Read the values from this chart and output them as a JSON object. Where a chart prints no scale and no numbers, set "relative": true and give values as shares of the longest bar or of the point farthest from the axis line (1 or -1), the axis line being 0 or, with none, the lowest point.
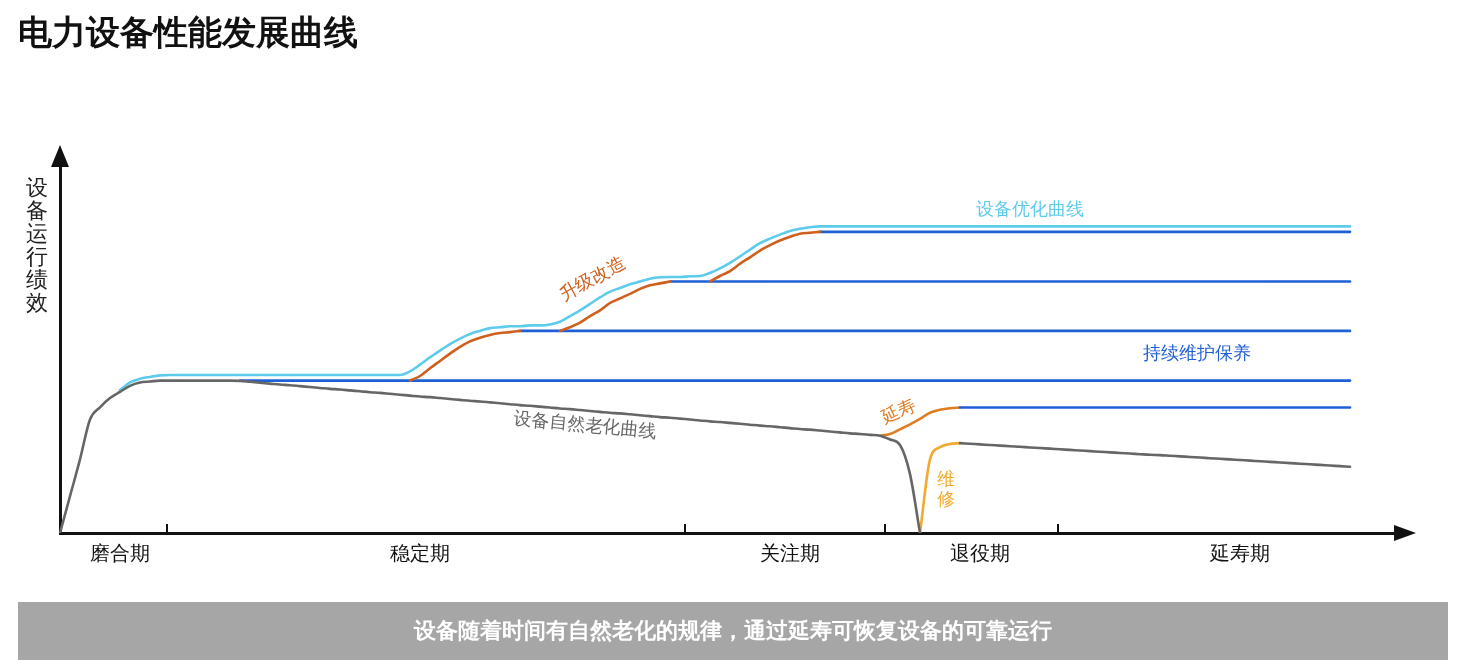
{
  "chart_data": {
    "type": "line",
    "relative": true,
    "title": "电力设备性能发展曲线",
    "ylabel": "设备运行绩效",
    "annotations": [
      "设备随着时间有自然老化的规律，通过延寿可恢复设备的可靠运行"
    ],
    "categories": [
      null,
      null,
      null,
      null,
      null,
      null,
      "磨合期",
      null,
      null,
      null,
      null,
      null,
      null,
      null,
      null,
      null,
      null,
      null,
      null,
      null,
      null,
      null,
      null,
      null,
      null,
      null,
      null,
      null,
      null,
      null,
      null,
      null,
      null,
      null,
      null,
      null,
      "稳定期",
      null,
      null,
      null,
      null,
      null,
      null,
      null,
      null,
      null,
      null,
      null,
      null,
      null,
      null,
      null,
      null,
      null,
      null,
      null,
      null,
      null,
      null,
      null,
      null,
      null,
      null,
      null,
      null,
      null,
      null,
      null,
      null,
      null,
      null,
      null,
      null,
      "关注期",
      null,
      null,
      null,
      null,
      null,
      null,
      null,
      null,
      null,
      null,
      null,
      null,
      null,
      null,
      null,
      null,
      null,
      null,
      "退役期",
      null,
      null,
      null,
      null,
      null,
      null,
      null,
      null,
      null,
      null,
      null,
      null,
      null,
      null,
      null,
      null,
      null,
      null,
      null,
      null,
      null,
      null,
      null,
      null,
      null,
      "延寿期",
      null,
      null,
      null,
      null,
      null,
      null,
      null,
      null,
      null,
      null,
      null,
      null,
      null,
      null,
      null,
      null
    ],
    "series": [
      {
        "name": "设备自然老化曲线",
        "color": "#666666",
        "values": [
          0,
          0.12,
          0.24,
          0.37,
          0.41,
          0.44,
          0.46,
          0.48,
          0.491,
          0.494,
          0.497,
          0.497,
          0.497,
          0.497,
          0.497,
          0.497,
          0.497,
          0.497,
          0.496,
          0.493,
          0.49,
          0.487,
          0.484,
          0.482,
          0.479,
          0.476,
          0.473,
          0.47,
          0.468,
          0.465,
          0.462,
          0.459,
          0.457,
          0.454,
          0.451,
          0.448,
          0.445,
          0.443,
          0.44,
          0.437,
          0.434,
          0.431,
          0.429,
          0.426,
          0.423,
          0.42,
          0.417,
          0.415,
          0.412,
          0.409,
          0.406,
          0.404,
          0.401,
          0.398,
          0.395,
          0.392,
          0.39,
          0.387,
          0.384,
          0.381,
          0.378,
          0.376,
          0.373,
          0.37,
          0.367,
          0.364,
          0.362,
          0.359,
          0.356,
          0.353,
          0.35,
          0.348,
          0.345,
          0.342,
          0.339,
          0.337,
          0.334,
          0.331,
          0.328,
          0.325,
          0.323,
          0.32,
          0.317,
          0.305,
          0.287,
          0.192,
          0,
          null,
          null,
          null,
          0.293,
          0.291,
          0.289,
          0.287,
          0.285,
          0.283,
          0.281,
          0.279,
          0.277,
          0.275,
          0.273,
          0.271,
          0.269,
          0.267,
          0.265,
          0.263,
          0.261,
          0.259,
          0.257,
          0.255,
          0.254,
          0.252,
          0.25,
          0.248,
          0.246,
          0.244,
          0.242,
          0.24,
          0.238,
          0.236,
          0.234,
          0.232,
          0.23,
          0.228,
          0.226,
          0.224,
          0.222,
          0.22,
          0.218,
          0.216,
          null,
          null,
          null,
          null,
          null
        ]
      },
      {
        "name": "设备优化曲线",
        "color": "#5ccbec",
        "values": [
          null,
          null,
          null,
          null,
          null,
          null,
          0.466,
          0.491,
          0.503,
          0.509,
          0.514,
          0.515,
          0.515,
          0.515,
          0.515,
          0.515,
          0.515,
          0.515,
          0.515,
          0.515,
          0.515,
          0.515,
          0.515,
          0.515,
          0.515,
          0.515,
          0.515,
          0.515,
          0.515,
          0.515,
          0.515,
          0.515,
          0.515,
          0.515,
          0.515,
          0.527,
          0.549,
          0.573,
          0.595,
          0.616,
          0.634,
          0.649,
          0.659,
          0.668,
          0.671,
          0.674,
          0.674,
          0.677,
          0.677,
          0.68,
          0.689,
          0.707,
          0.726,
          0.747,
          0.768,
          0.787,
          0.799,
          0.811,
          0.82,
          0.829,
          0.834,
          0.835,
          0.835,
          0.837,
          0.838,
          0.848,
          0.863,
          0.881,
          0.902,
          0.924,
          0.945,
          0.96,
          0.973,
          0.985,
          0.992,
          0.997,
          1,
          1,
          1,
          1,
          1,
          1,
          1,
          1,
          1,
          1,
          1,
          1,
          1,
          1,
          1,
          1,
          1,
          1,
          1,
          1,
          1,
          1,
          1,
          1,
          1,
          1,
          1,
          1,
          1,
          1,
          1,
          1,
          1,
          1,
          1,
          1,
          1,
          1,
          1,
          1,
          1,
          1,
          1,
          1,
          1,
          1,
          1,
          1,
          1,
          1,
          1,
          1,
          1,
          1,
          null,
          null,
          null,
          null,
          null
        ]
      },
      {
        "name": "升级改造",
        "color": "#cf5f1c",
        "values": [
          null,
          null,
          null,
          null,
          null,
          null,
          null,
          null,
          null,
          null,
          null,
          null,
          null,
          null,
          null,
          null,
          null,
          null,
          null,
          null,
          null,
          null,
          null,
          null,
          null,
          null,
          null,
          null,
          null,
          null,
          null,
          null,
          null,
          null,
          null,
          0.497,
          0.512,
          0.537,
          0.561,
          0.585,
          0.607,
          0.625,
          0.637,
          0.646,
          0.652,
          0.655,
          0.659,
          null,
          null,
          null,
          0.659,
          0.671,
          0.686,
          0.707,
          0.726,
          0.75,
          0.765,
          0.78,
          0.796,
          0.808,
          0.814,
          0.82,
          null,
          null,
          null,
          0.82,
          0.838,
          0.854,
          0.878,
          0.899,
          0.921,
          0.939,
          0.954,
          0.966,
          0.976,
          0.979,
          0.982,
          null,
          null,
          null,
          null,
          null,
          null,
          null,
          null,
          null,
          null,
          null,
          null,
          null,
          null,
          null,
          null,
          null,
          null,
          null,
          null,
          null,
          null,
          null,
          null,
          null,
          null,
          null,
          null,
          null,
          null,
          null,
          null,
          null,
          null,
          null,
          null,
          null,
          null,
          null,
          null,
          null,
          null,
          null,
          null,
          null,
          null,
          null,
          null,
          null,
          null,
          null,
          null,
          null,
          null,
          null,
          null,
          null,
          null
        ]
      },
      {
        "name": "持续维护保养",
        "color": "#1f5fd6",
        "values": [
          null,
          null,
          null,
          null,
          null,
          null,
          null,
          null,
          null,
          null,
          null,
          null,
          null,
          null,
          null,
          null,
          null,
          null,
          0.497,
          0.497,
          0.497,
          0.497,
          0.497,
          0.497,
          0.497,
          0.497,
          0.497,
          0.497,
          0.497,
          0.497,
          0.497,
          0.497,
          0.497,
          0.497,
          0.497,
          0.497,
          0.497,
          0.497,
          0.497,
          0.497,
          0.497,
          0.497,
          0.497,
          0.497,
          0.497,
          0.497,
          0.497,
          0.497,
          0.497,
          0.497,
          0.497,
          0.497,
          0.497,
          0.497,
          0.497,
          0.497,
          0.497,
          0.497,
          0.497,
          0.497,
          0.497,
          0.497,
          0.497,
          0.497,
          0.497,
          0.497,
          0.497,
          0.497,
          0.497,
          0.497,
          0.497,
          0.497,
          0.497,
          0.497,
          0.497,
          0.497,
          0.497,
          0.497,
          0.497,
          0.497,
          0.497,
          0.497,
          0.497,
          0.497,
          0.497,
          0.497,
          0.497,
          0.497,
          0.497,
          0.497,
          0.497,
          0.497,
          0.497,
          0.497,
          0.497,
          0.497,
          0.497,
          0.497,
          0.497,
          0.497,
          0.497,
          0.497,
          0.497,
          0.497,
          0.497,
          0.497,
          0.497,
          0.497,
          0.497,
          0.497,
          0.497,
          0.497,
          0.497,
          0.497,
          0.497,
          0.497,
          0.497,
          0.497,
          0.497,
          0.497,
          0.497,
          0.497,
          0.497,
          0.497,
          0.497,
          0.497,
          0.497,
          0.497,
          0.497,
          0.497,
          null,
          null,
          null,
          null,
          null
        ]
      },
      {
        "color": "#1f5fd6",
        "values": [
          null,
          null,
          null,
          null,
          null,
          null,
          null,
          null,
          null,
          null,
          null,
          null,
          null,
          null,
          null,
          null,
          null,
          null,
          null,
          null,
          null,
          null,
          null,
          null,
          null,
          null,
          null,
          null,
          null,
          null,
          null,
          null,
          null,
          null,
          null,
          null,
          null,
          null,
          null,
          null,
          null,
          null,
          null,
          null,
          null,
          null,
          0.659,
          0.659,
          0.659,
          0.659,
          0.659,
          0.659,
          0.659,
          0.659,
          0.659,
          0.659,
          0.659,
          0.659,
          0.659,
          0.659,
          0.659,
          0.659,
          0.659,
          0.659,
          0.659,
          0.659,
          0.659,
          0.659,
          0.659,
          0.659,
          0.659,
          0.659,
          0.659,
          0.659,
          0.659,
          0.659,
          0.659,
          0.659,
          0.659,
          0.659,
          0.659,
          0.659,
          0.659,
          0.659,
          0.659,
          0.659,
          0.659,
          0.659,
          0.659,
          0.659,
          0.659,
          0.659,
          0.659,
          0.659,
          0.659,
          0.659,
          0.659,
          0.659,
          0.659,
          0.659,
          0.659,
          0.659,
          0.659,
          0.659,
          0.659,
          0.659,
          0.659,
          0.659,
          0.659,
          0.659,
          0.659,
          0.659,
          0.659,
          0.659,
          0.659,
          0.659,
          0.659,
          0.659,
          0.659,
          0.659,
          0.659,
          0.659,
          0.659,
          0.659,
          0.659,
          0.659,
          0.659,
          0.659,
          0.659,
          0.659,
          null,
          null,
          null,
          null,
          null
        ]
      },
      {
        "color": "#1f5fd6",
        "values": [
          null,
          null,
          null,
          null,
          null,
          null,
          null,
          null,
          null,
          null,
          null,
          null,
          null,
          null,
          null,
          null,
          null,
          null,
          null,
          null,
          null,
          null,
          null,
          null,
          null,
          null,
          null,
          null,
          null,
          null,
          null,
          null,
          null,
          null,
          null,
          null,
          null,
          null,
          null,
          null,
          null,
          null,
          null,
          null,
          null,
          null,
          null,
          null,
          null,
          null,
          null,
          null,
          null,
          null,
          null,
          null,
          null,
          null,
          null,
          null,
          null,
          0.82,
          0.82,
          0.82,
          0.82,
          0.82,
          0.82,
          0.82,
          0.82,
          0.82,
          0.82,
          0.82,
          0.82,
          0.82,
          0.82,
          0.82,
          0.82,
          0.82,
          0.82,
          0.82,
          0.82,
          0.82,
          0.82,
          0.82,
          0.82,
          0.82,
          0.82,
          0.82,
          0.82,
          0.82,
          0.82,
          0.82,
          0.82,
          0.82,
          0.82,
          0.82,
          0.82,
          0.82,
          0.82,
          0.82,
          0.82,
          0.82,
          0.82,
          0.82,
          0.82,
          0.82,
          0.82,
          0.82,
          0.82,
          0.82,
          0.82,
          0.82,
          0.82,
          0.82,
          0.82,
          0.82,
          0.82,
          0.82,
          0.82,
          0.82,
          0.82,
          0.82,
          0.82,
          0.82,
          0.82,
          0.82,
          0.82,
          0.82,
          0.82,
          0.82,
          null,
          null,
          null,
          null,
          null
        ]
      },
      {
        "color": "#1f5fd6",
        "values": [
          null,
          null,
          null,
          null,
          null,
          null,
          null,
          null,
          null,
          null,
          null,
          null,
          null,
          null,
          null,
          null,
          null,
          null,
          null,
          null,
          null,
          null,
          null,
          null,
          null,
          null,
          null,
          null,
          null,
          null,
          null,
          null,
          null,
          null,
          null,
          null,
          null,
          null,
          null,
          null,
          null,
          null,
          null,
          null,
          null,
          null,
          null,
          null,
          null,
          null,
          null,
          null,
          null,
          null,
          null,
          null,
          null,
          null,
          null,
          null,
          null,
          null,
          null,
          null,
          null,
          null,
          null,
          null,
          null,
          null,
          null,
          null,
          null,
          null,
          null,
          null,
          0.982,
          0.982,
          0.982,
          0.982,
          0.982,
          0.982,
          0.982,
          0.982,
          0.982,
          0.982,
          0.982,
          0.982,
          0.982,
          0.982,
          0.982,
          0.982,
          0.982,
          0.982,
          0.982,
          0.982,
          0.982,
          0.982,
          0.982,
          0.982,
          0.982,
          0.982,
          0.982,
          0.982,
          0.982,
          0.982,
          0.982,
          0.982,
          0.982,
          0.982,
          0.982,
          0.982,
          0.982,
          0.982,
          0.982,
          0.982,
          0.982,
          0.982,
          0.982,
          0.982,
          0.982,
          0.982,
          0.982,
          0.982,
          0.982,
          0.982,
          0.982,
          0.982,
          0.982,
          0.982,
          null,
          null,
          null,
          null,
          null
        ]
      },
      {
        "color": "#1f5fd6",
        "values": [
          null,
          null,
          null,
          null,
          null,
          null,
          null,
          null,
          null,
          null,
          null,
          null,
          null,
          null,
          null,
          null,
          null,
          null,
          null,
          null,
          null,
          null,
          null,
          null,
          null,
          null,
          null,
          null,
          null,
          null,
          null,
          null,
          null,
          null,
          null,
          null,
          null,
          null,
          null,
          null,
          null,
          null,
          null,
          null,
          null,
          null,
          null,
          null,
          null,
          null,
          null,
          null,
          null,
          null,
          null,
          null,
          null,
          null,
          null,
          null,
          null,
          null,
          null,
          null,
          null,
          null,
          null,
          null,
          null,
          null,
          null,
          null,
          null,
          null,
          null,
          null,
          null,
          null,
          null,
          null,
          null,
          null,
          null,
          null,
          null,
          null,
          null,
          null,
          null,
          null,
          0.409,
          0.409,
          0.409,
          0.409,
          0.409,
          0.409,
          0.409,
          0.409,
          0.409,
          0.409,
          0.409,
          0.409,
          0.409,
          0.409,
          0.409,
          0.409,
          0.409,
          0.409,
          0.409,
          0.409,
          0.409,
          0.409,
          0.409,
          0.409,
          0.409,
          0.409,
          0.409,
          0.409,
          0.409,
          0.409,
          0.409,
          0.409,
          0.409,
          0.409,
          0.409,
          0.409,
          0.409,
          0.409,
          0.409,
          0.409,
          null,
          null,
          null,
          null,
          null
        ]
      },
      {
        "name": "延寿",
        "color": "#e07d22",
        "values": [
          null,
          null,
          null,
          null,
          null,
          null,
          null,
          null,
          null,
          null,
          null,
          null,
          null,
          null,
          null,
          null,
          null,
          null,
          null,
          null,
          null,
          null,
          null,
          null,
          null,
          null,
          null,
          null,
          null,
          null,
          null,
          null,
          null,
          null,
          null,
          null,
          null,
          null,
          null,
          null,
          null,
          null,
          null,
          null,
          null,
          null,
          null,
          null,
          null,
          null,
          null,
          null,
          null,
          null,
          null,
          null,
          null,
          null,
          null,
          null,
          null,
          null,
          null,
          null,
          null,
          null,
          null,
          null,
          null,
          null,
          null,
          null,
          null,
          null,
          null,
          null,
          null,
          null,
          null,
          null,
          null,
          null,
          0.317,
          0.323,
          0.338,
          0.354,
          0.372,
          0.392,
          0.402,
          0.407,
          0.409,
          null,
          null,
          null,
          null,
          null,
          null,
          null,
          null,
          null,
          null,
          null,
          null,
          null,
          null,
          null,
          null,
          null,
          null,
          null,
          null,
          null,
          null,
          null,
          null,
          null,
          null,
          null,
          null,
          null,
          null,
          null,
          null,
          null,
          null,
          null,
          null,
          null,
          null,
          null,
          null,
          null,
          null,
          null,
          null
        ]
      },
      {
        "name": "维修",
        "color": "#f2aa2e",
        "values": [
          null,
          null,
          null,
          null,
          null,
          null,
          null,
          null,
          null,
          null,
          null,
          null,
          null,
          null,
          null,
          null,
          null,
          null,
          null,
          null,
          null,
          null,
          null,
          null,
          null,
          null,
          null,
          null,
          null,
          null,
          null,
          null,
          null,
          null,
          null,
          null,
          null,
          null,
          null,
          null,
          null,
          null,
          null,
          null,
          null,
          null,
          null,
          null,
          null,
          null,
          null,
          null,
          null,
          null,
          null,
          null,
          null,
          null,
          null,
          null,
          null,
          null,
          null,
          null,
          null,
          null,
          null,
          null,
          null,
          null,
          null,
          null,
          null,
          null,
          null,
          null,
          null,
          null,
          null,
          null,
          null,
          null,
          null,
          null,
          null,
          null,
          0,
          0.24,
          0.28,
          0.29,
          0.293,
          null,
          null,
          null,
          null,
          null,
          null,
          null,
          null,
          null,
          null,
          null,
          null,
          null,
          null,
          null,
          null,
          null,
          null,
          null,
          null,
          null,
          null,
          null,
          null,
          null,
          null,
          null,
          null,
          null,
          null,
          null,
          null,
          null,
          null,
          null,
          null,
          null,
          null,
          null,
          null,
          null,
          null,
          null,
          null
        ]
      }
    ]
  }
}
